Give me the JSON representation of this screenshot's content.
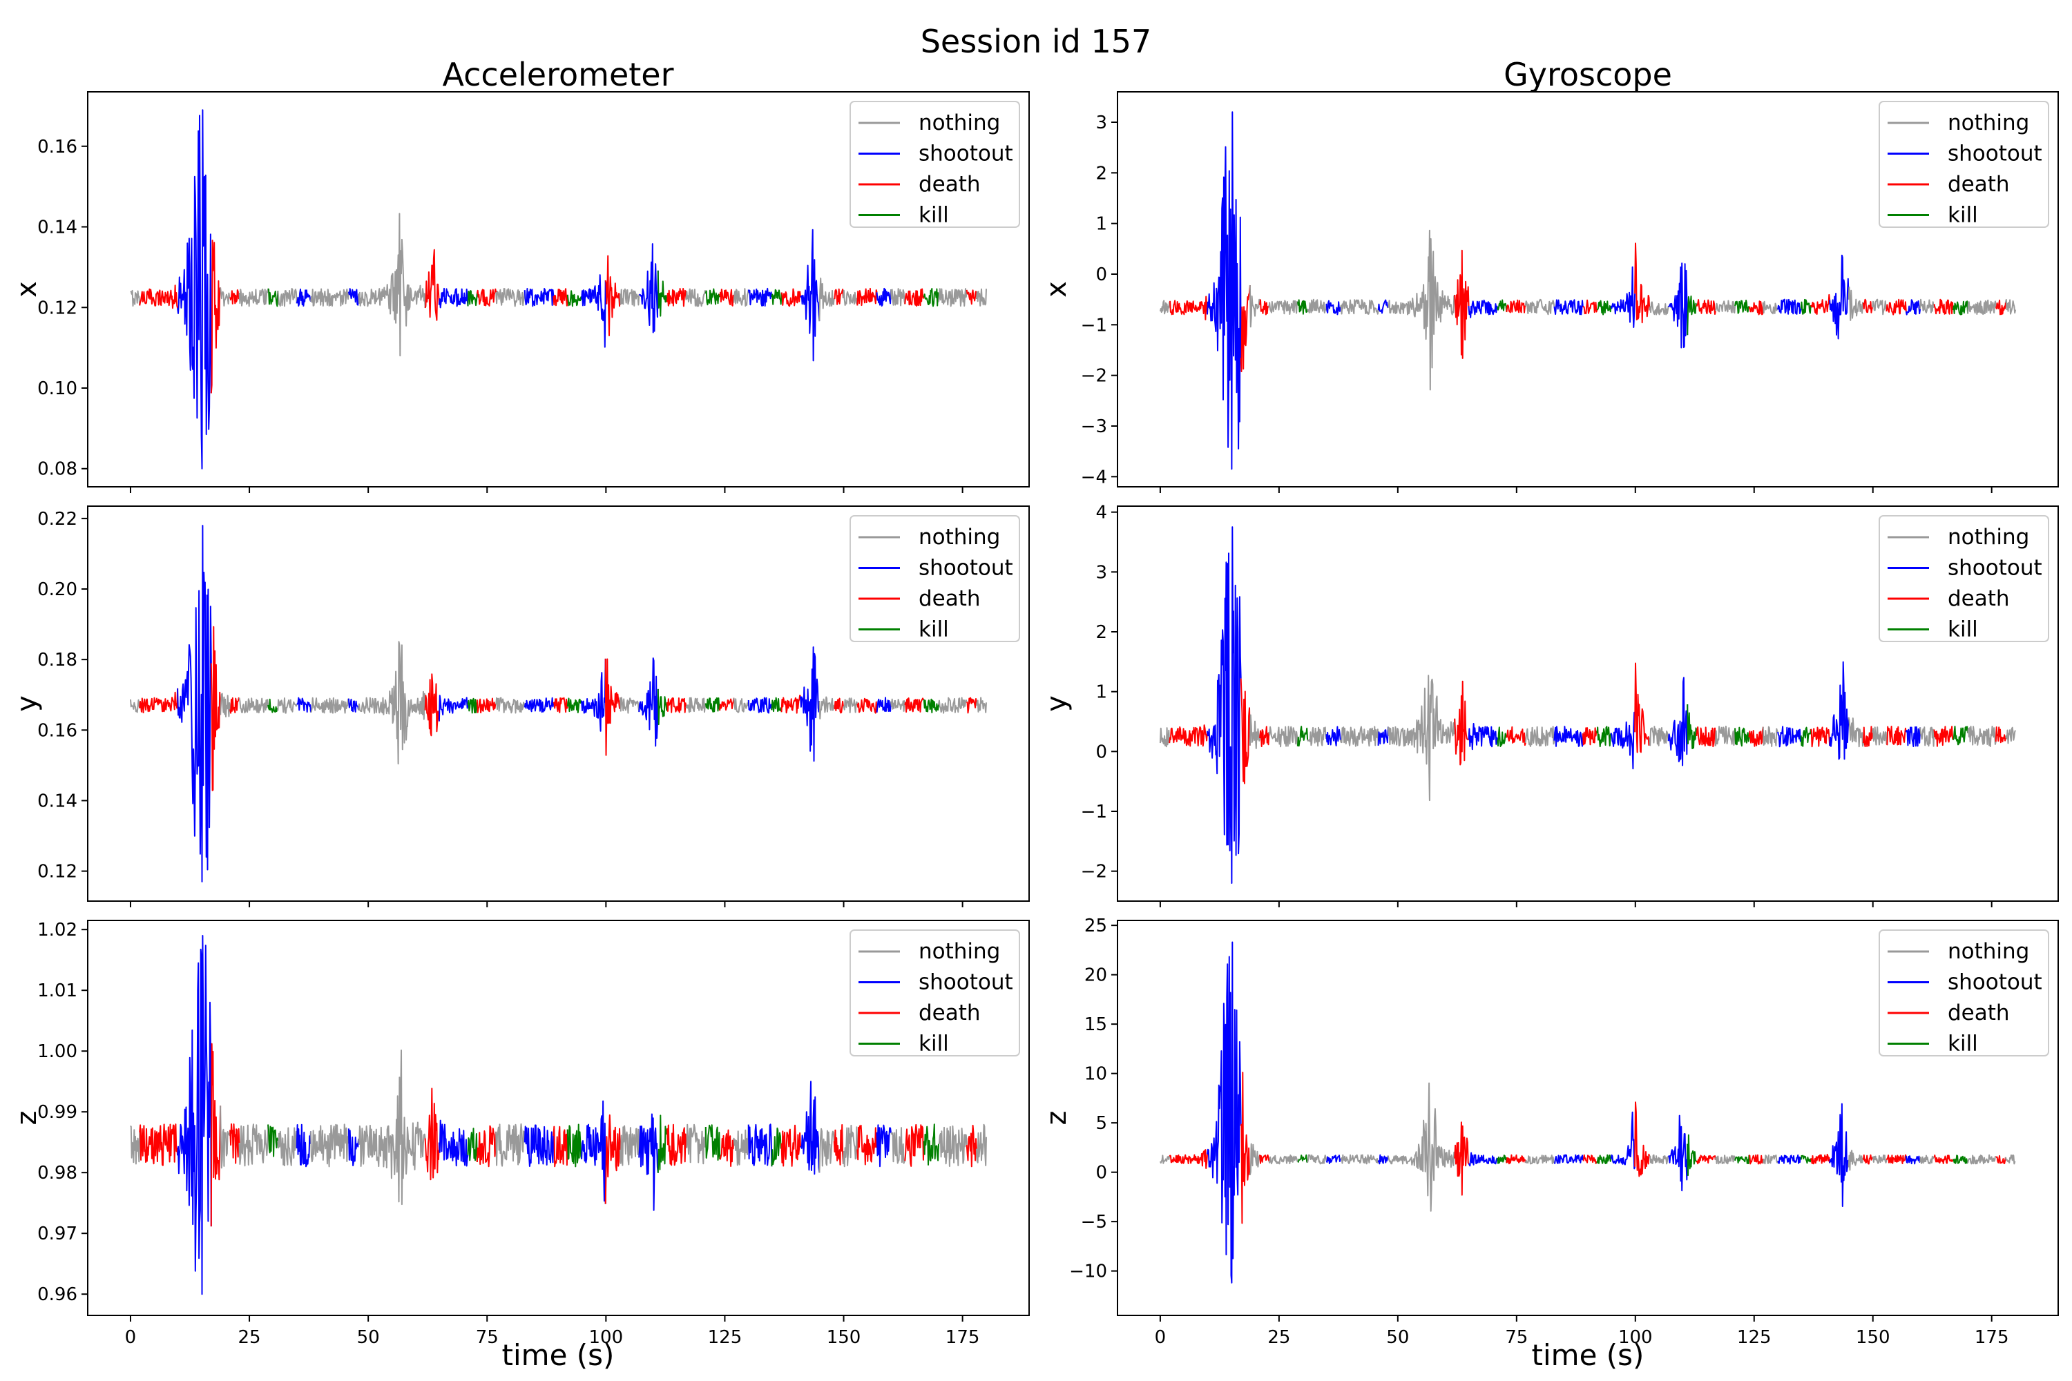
{
  "chart_data": {
    "type": "line",
    "title": "Session id 157",
    "xlabel": "time (s)",
    "xlim": [
      -9,
      189
    ],
    "xticks": [
      0,
      25,
      50,
      75,
      100,
      125,
      150,
      175
    ],
    "colors": {
      "nothing": "#999999",
      "shootout": "#0000ff",
      "death": "#ff0000",
      "kill": "#008000"
    },
    "legend": [
      "nothing",
      "shootout",
      "death",
      "kill"
    ],
    "legend_placement": "top-right",
    "columns": [
      {
        "title": "Accelerometer"
      },
      {
        "title": "Gyroscope"
      }
    ],
    "segments": [
      [
        0,
        2,
        "nothing"
      ],
      [
        2,
        10,
        "death"
      ],
      [
        10,
        13,
        "shootout"
      ],
      [
        13,
        17,
        "shootout"
      ],
      [
        17,
        19,
        "death"
      ],
      [
        19,
        21,
        "nothing"
      ],
      [
        21,
        23,
        "death"
      ],
      [
        23,
        29,
        "nothing"
      ],
      [
        29,
        31,
        "kill"
      ],
      [
        31,
        35,
        "nothing"
      ],
      [
        35,
        38,
        "shootout"
      ],
      [
        38,
        46,
        "nothing"
      ],
      [
        46,
        48,
        "shootout"
      ],
      [
        48,
        54,
        "nothing"
      ],
      [
        54,
        56,
        "nothing"
      ],
      [
        56,
        58,
        "nothing"
      ],
      [
        58,
        62,
        "nothing"
      ],
      [
        62,
        65,
        "death"
      ],
      [
        65,
        71,
        "shootout"
      ],
      [
        71,
        73,
        "kill"
      ],
      [
        73,
        77,
        "death"
      ],
      [
        77,
        83,
        "nothing"
      ],
      [
        83,
        89,
        "shootout"
      ],
      [
        89,
        92,
        "death"
      ],
      [
        92,
        95,
        "kill"
      ],
      [
        95,
        100,
        "shootout"
      ],
      [
        100,
        103,
        "death"
      ],
      [
        103,
        107,
        "nothing"
      ],
      [
        107,
        111,
        "shootout"
      ],
      [
        111,
        113,
        "kill"
      ],
      [
        113,
        117,
        "death"
      ],
      [
        117,
        121,
        "nothing"
      ],
      [
        121,
        124,
        "kill"
      ],
      [
        124,
        127,
        "death"
      ],
      [
        127,
        130,
        "nothing"
      ],
      [
        130,
        135,
        "shootout"
      ],
      [
        135,
        137,
        "kill"
      ],
      [
        137,
        141,
        "death"
      ],
      [
        141,
        145,
        "shootout"
      ],
      [
        145,
        148,
        "nothing"
      ],
      [
        148,
        150,
        "death"
      ],
      [
        150,
        153,
        "nothing"
      ],
      [
        153,
        157,
        "death"
      ],
      [
        157,
        160,
        "shootout"
      ],
      [
        160,
        163,
        "nothing"
      ],
      [
        163,
        167,
        "death"
      ],
      [
        167,
        170,
        "kill"
      ],
      [
        170,
        176,
        "nothing"
      ],
      [
        176,
        178,
        "death"
      ],
      [
        178,
        180,
        "nothing"
      ]
    ],
    "events": [
      {
        "t": 14.2,
        "amp": 1.0,
        "decay": 1.4
      },
      {
        "t": 15.3,
        "amp": 0.9,
        "decay": 1.2
      },
      {
        "t": 16.4,
        "amp": 0.55,
        "decay": 1.0
      },
      {
        "t": 56.8,
        "amp": 0.55,
        "decay": 1.2
      },
      {
        "t": 63.5,
        "amp": 0.45,
        "decay": 0.8
      },
      {
        "t": 100.0,
        "amp": 0.4,
        "decay": 1.0
      },
      {
        "t": 110.0,
        "amp": 0.4,
        "decay": 1.0
      },
      {
        "t": 143.5,
        "amp": 0.45,
        "decay": 1.0
      }
    ],
    "panels": [
      {
        "col": 0,
        "row": 0,
        "ylabel": "x",
        "yticks": [
          0.08,
          0.1,
          0.12,
          0.14,
          0.16
        ],
        "ytick_labels": [
          "0.08",
          "0.10",
          "0.12",
          "0.14",
          "0.16"
        ],
        "ylim": [
          0.0755,
          0.1735
        ],
        "baseline": 0.1225,
        "noise": 0.0022,
        "spike_min": 0.08,
        "spike_max": 0.169
      },
      {
        "col": 0,
        "row": 1,
        "ylabel": "y",
        "yticks": [
          0.12,
          0.14,
          0.16,
          0.18,
          0.2,
          0.22
        ],
        "ytick_labels": [
          "0.12",
          "0.14",
          "0.16",
          "0.18",
          "0.20",
          "0.22"
        ],
        "ylim": [
          0.1115,
          0.2235
        ],
        "baseline": 0.167,
        "noise": 0.0022,
        "spike_min": 0.117,
        "spike_max": 0.218
      },
      {
        "col": 0,
        "row": 2,
        "ylabel": "z",
        "yticks": [
          0.96,
          0.97,
          0.98,
          0.99,
          1.0,
          1.01,
          1.02
        ],
        "ytick_labels": [
          "0.96",
          "0.97",
          "0.98",
          "0.99",
          "1.00",
          "1.01",
          "1.02"
        ],
        "ylim": [
          0.9565,
          1.0215
        ],
        "baseline": 0.9845,
        "noise": 0.0035,
        "spike_min": 0.96,
        "spike_max": 1.019
      },
      {
        "col": 1,
        "row": 0,
        "ylabel": "x",
        "yticks": [
          -4,
          -3,
          -2,
          -1,
          0,
          1,
          2,
          3
        ],
        "ytick_labels": [
          "−4",
          "−3",
          "−2",
          "−1",
          "0",
          "1",
          "2",
          "3"
        ],
        "ylim": [
          -4.2,
          3.6
        ],
        "baseline": -0.65,
        "noise": 0.15,
        "spike_min": -3.85,
        "spike_max": 3.2
      },
      {
        "col": 1,
        "row": 1,
        "ylabel": "y",
        "yticks": [
          -2,
          -1,
          0,
          1,
          2,
          3,
          4
        ],
        "ytick_labels": [
          "−2",
          "−1",
          "0",
          "1",
          "2",
          "3",
          "4"
        ],
        "ylim": [
          -2.5,
          4.1
        ],
        "baseline": 0.25,
        "noise": 0.17,
        "spike_min": -2.2,
        "spike_max": 3.75
      },
      {
        "col": 1,
        "row": 2,
        "ylabel": "z",
        "yticks": [
          -10,
          -5,
          0,
          5,
          10,
          15,
          20,
          25
        ],
        "ytick_labels": [
          "−10",
          "−5",
          "0",
          "5",
          "10",
          "15",
          "20",
          "25"
        ],
        "ylim": [
          -14.5,
          25.5
        ],
        "baseline": 1.3,
        "noise": 0.45,
        "spike_min": -11.2,
        "spike_max": 23.3
      }
    ]
  }
}
